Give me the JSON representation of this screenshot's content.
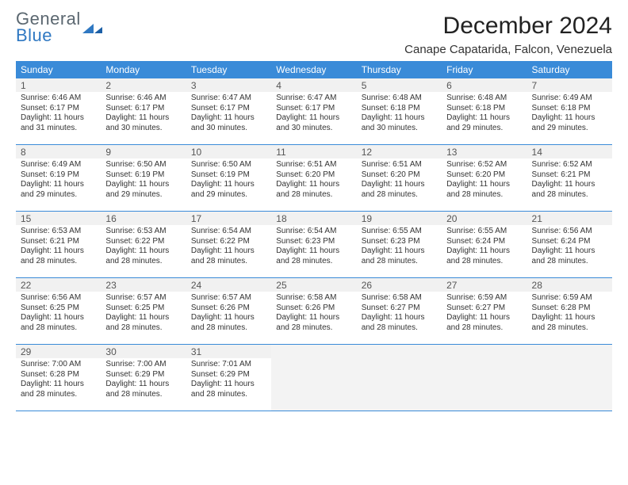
{
  "brand": {
    "line1": "General",
    "line2": "Blue"
  },
  "title": "December 2024",
  "location": "Canape Capatarida, Falcon, Venezuela",
  "colors": {
    "header_bg": "#3a8bd8",
    "header_text": "#ffffff",
    "rule": "#3a8bd8",
    "daynum_bg": "#f1f1f1",
    "empty_bg": "#f3f3f3",
    "brand_gray": "#5b6770",
    "brand_blue": "#2f78c2"
  },
  "weekdays": [
    "Sunday",
    "Monday",
    "Tuesday",
    "Wednesday",
    "Thursday",
    "Friday",
    "Saturday"
  ],
  "days": [
    {
      "n": 1,
      "sr": "6:46 AM",
      "ss": "6:17 PM",
      "dl": "11 hours and 31 minutes."
    },
    {
      "n": 2,
      "sr": "6:46 AM",
      "ss": "6:17 PM",
      "dl": "11 hours and 30 minutes."
    },
    {
      "n": 3,
      "sr": "6:47 AM",
      "ss": "6:17 PM",
      "dl": "11 hours and 30 minutes."
    },
    {
      "n": 4,
      "sr": "6:47 AM",
      "ss": "6:17 PM",
      "dl": "11 hours and 30 minutes."
    },
    {
      "n": 5,
      "sr": "6:48 AM",
      "ss": "6:18 PM",
      "dl": "11 hours and 30 minutes."
    },
    {
      "n": 6,
      "sr": "6:48 AM",
      "ss": "6:18 PM",
      "dl": "11 hours and 29 minutes."
    },
    {
      "n": 7,
      "sr": "6:49 AM",
      "ss": "6:18 PM",
      "dl": "11 hours and 29 minutes."
    },
    {
      "n": 8,
      "sr": "6:49 AM",
      "ss": "6:19 PM",
      "dl": "11 hours and 29 minutes."
    },
    {
      "n": 9,
      "sr": "6:50 AM",
      "ss": "6:19 PM",
      "dl": "11 hours and 29 minutes."
    },
    {
      "n": 10,
      "sr": "6:50 AM",
      "ss": "6:19 PM",
      "dl": "11 hours and 29 minutes."
    },
    {
      "n": 11,
      "sr": "6:51 AM",
      "ss": "6:20 PM",
      "dl": "11 hours and 28 minutes."
    },
    {
      "n": 12,
      "sr": "6:51 AM",
      "ss": "6:20 PM",
      "dl": "11 hours and 28 minutes."
    },
    {
      "n": 13,
      "sr": "6:52 AM",
      "ss": "6:20 PM",
      "dl": "11 hours and 28 minutes."
    },
    {
      "n": 14,
      "sr": "6:52 AM",
      "ss": "6:21 PM",
      "dl": "11 hours and 28 minutes."
    },
    {
      "n": 15,
      "sr": "6:53 AM",
      "ss": "6:21 PM",
      "dl": "11 hours and 28 minutes."
    },
    {
      "n": 16,
      "sr": "6:53 AM",
      "ss": "6:22 PM",
      "dl": "11 hours and 28 minutes."
    },
    {
      "n": 17,
      "sr": "6:54 AM",
      "ss": "6:22 PM",
      "dl": "11 hours and 28 minutes."
    },
    {
      "n": 18,
      "sr": "6:54 AM",
      "ss": "6:23 PM",
      "dl": "11 hours and 28 minutes."
    },
    {
      "n": 19,
      "sr": "6:55 AM",
      "ss": "6:23 PM",
      "dl": "11 hours and 28 minutes."
    },
    {
      "n": 20,
      "sr": "6:55 AM",
      "ss": "6:24 PM",
      "dl": "11 hours and 28 minutes."
    },
    {
      "n": 21,
      "sr": "6:56 AM",
      "ss": "6:24 PM",
      "dl": "11 hours and 28 minutes."
    },
    {
      "n": 22,
      "sr": "6:56 AM",
      "ss": "6:25 PM",
      "dl": "11 hours and 28 minutes."
    },
    {
      "n": 23,
      "sr": "6:57 AM",
      "ss": "6:25 PM",
      "dl": "11 hours and 28 minutes."
    },
    {
      "n": 24,
      "sr": "6:57 AM",
      "ss": "6:26 PM",
      "dl": "11 hours and 28 minutes."
    },
    {
      "n": 25,
      "sr": "6:58 AM",
      "ss": "6:26 PM",
      "dl": "11 hours and 28 minutes."
    },
    {
      "n": 26,
      "sr": "6:58 AM",
      "ss": "6:27 PM",
      "dl": "11 hours and 28 minutes."
    },
    {
      "n": 27,
      "sr": "6:59 AM",
      "ss": "6:27 PM",
      "dl": "11 hours and 28 minutes."
    },
    {
      "n": 28,
      "sr": "6:59 AM",
      "ss": "6:28 PM",
      "dl": "11 hours and 28 minutes."
    },
    {
      "n": 29,
      "sr": "7:00 AM",
      "ss": "6:28 PM",
      "dl": "11 hours and 28 minutes."
    },
    {
      "n": 30,
      "sr": "7:00 AM",
      "ss": "6:29 PM",
      "dl": "11 hours and 28 minutes."
    },
    {
      "n": 31,
      "sr": "7:01 AM",
      "ss": "6:29 PM",
      "dl": "11 hours and 28 minutes."
    }
  ],
  "labels": {
    "sunrise": "Sunrise:",
    "sunset": "Sunset:",
    "daylight": "Daylight:"
  },
  "layout": {
    "first_weekday_offset": 0,
    "total_cells": 35
  }
}
